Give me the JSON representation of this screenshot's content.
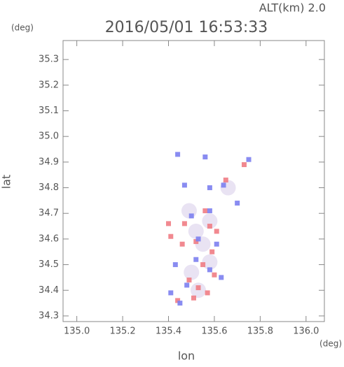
{
  "chart_data": {
    "type": "scatter",
    "title": "2016/05/01 16:53:33",
    "subtitle": "ALT(km) 2.0",
    "y_unit": "(deg)",
    "x_unit": "(deg)",
    "xlabel": "lon",
    "ylabel": "lat",
    "xlim": [
      134.94,
      136.08
    ],
    "ylim": [
      34.278,
      35.374
    ],
    "xticks": [
      {
        "value": 135,
        "label": "135.0"
      },
      135.2,
      135.4,
      135.6,
      135.8,
      {
        "value": 136,
        "label": "136.0"
      }
    ],
    "yticks": [
      34.3,
      34.4,
      34.5,
      34.6,
      34.7,
      34.8,
      34.9,
      {
        "value": 35,
        "label": "35.0"
      },
      35.1,
      35.2,
      35.3
    ],
    "series": [
      {
        "color": "#e4dcf0",
        "x": [
          135.52,
          135.55,
          135.5,
          135.58,
          135.49,
          135.53,
          135.58,
          135.66
        ],
        "y": [
          34.63,
          34.58,
          34.47,
          34.67,
          34.71,
          34.4,
          34.51,
          34.8
        ]
      },
      {
        "color": "#f07c84",
        "x": [
          135.52,
          135.58,
          135.53,
          135.49,
          135.61,
          135.41,
          135.59,
          135.55,
          135.47,
          135.73,
          135.65,
          135.57,
          135.44,
          135.51,
          135.46,
          135.56,
          135.6,
          135.4
        ],
        "y": [
          34.59,
          34.65,
          34.41,
          34.44,
          34.63,
          34.61,
          34.55,
          34.5,
          34.66,
          34.89,
          34.83,
          34.39,
          34.36,
          34.37,
          34.58,
          34.71,
          34.46,
          34.66
        ]
      },
      {
        "color": "#7c80f0",
        "x": [
          135.53,
          135.58,
          135.43,
          135.48,
          135.75,
          135.64,
          135.47,
          135.56,
          135.44,
          135.61,
          135.5,
          135.45,
          135.58,
          135.7,
          135.58,
          135.41,
          135.52,
          135.63
        ],
        "y": [
          34.6,
          34.48,
          34.5,
          34.42,
          34.91,
          34.81,
          34.81,
          34.92,
          34.93,
          34.58,
          34.69,
          34.35,
          34.71,
          34.74,
          34.8,
          34.39,
          34.52,
          34.45
        ]
      }
    ]
  }
}
